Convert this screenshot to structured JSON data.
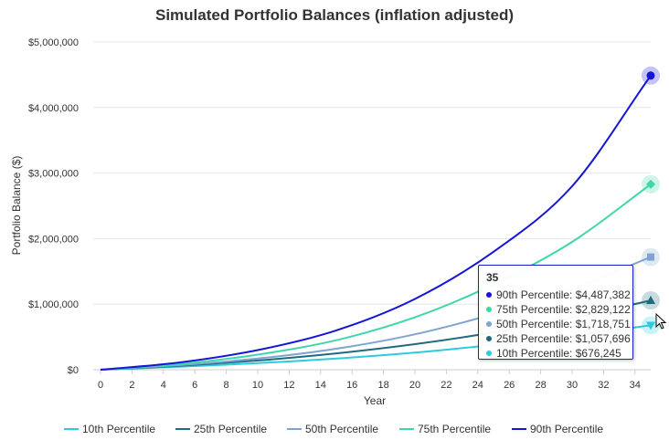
{
  "chart_data": {
    "type": "line",
    "title": "Simulated Portfolio Balances (inflation adjusted)",
    "xlabel": "Year",
    "ylabel": "Portfolio Balance ($)",
    "xlim": [
      0,
      35
    ],
    "ylim": [
      0,
      5000000
    ],
    "x_ticks": [
      "0",
      "2",
      "4",
      "6",
      "8",
      "10",
      "12",
      "14",
      "16",
      "18",
      "20",
      "22",
      "24",
      "26",
      "28",
      "30",
      "32",
      "34"
    ],
    "y_ticks": [
      "$0",
      "$1,000,000",
      "$2,000,000",
      "$3,000,000",
      "$4,000,000",
      "$5,000,000"
    ],
    "grid": "horizontal",
    "legend_position": "bottom",
    "x": [
      0,
      5,
      10,
      15,
      20,
      25,
      30,
      35
    ],
    "series": [
      {
        "name": "10th Percentile",
        "color": "#2ecbe0",
        "marker": "triangle-down",
        "values": [
          0,
          45000,
          100000,
          170000,
          260000,
          380000,
          520000,
          676245
        ]
      },
      {
        "name": "25th Percentile",
        "color": "#1f6b7e",
        "marker": "triangle",
        "values": [
          0,
          60000,
          140000,
          250000,
          390000,
          570000,
          790000,
          1057696
        ]
      },
      {
        "name": "50th Percentile",
        "color": "#7fa4d1",
        "marker": "square",
        "values": [
          0,
          70000,
          170000,
          320000,
          540000,
          850000,
          1230000,
          1718751
        ]
      },
      {
        "name": "75th Percentile",
        "color": "#3ed7aa",
        "marker": "diamond",
        "values": [
          0,
          85000,
          230000,
          450000,
          800000,
          1300000,
          1950000,
          2829122
        ]
      },
      {
        "name": "90th Percentile",
        "color": "#1515d8",
        "marker": "circle",
        "values": [
          0,
          110000,
          300000,
          600000,
          1080000,
          1800000,
          2800000,
          4487382
        ]
      }
    ],
    "tooltip": {
      "header": "35",
      "rows": [
        {
          "label": "90th Percentile: $4,487,382",
          "color": "#1515d8"
        },
        {
          "label": "75th Percentile: $2,829,122",
          "color": "#3ed7aa"
        },
        {
          "label": "50th Percentile: $1,718,751",
          "color": "#7fa4d1"
        },
        {
          "label": "25th Percentile: $1,057,696",
          "color": "#1f6b7e"
        },
        {
          "label": "10th Percentile: $676,245",
          "color": "#2ecbe0"
        }
      ]
    }
  }
}
